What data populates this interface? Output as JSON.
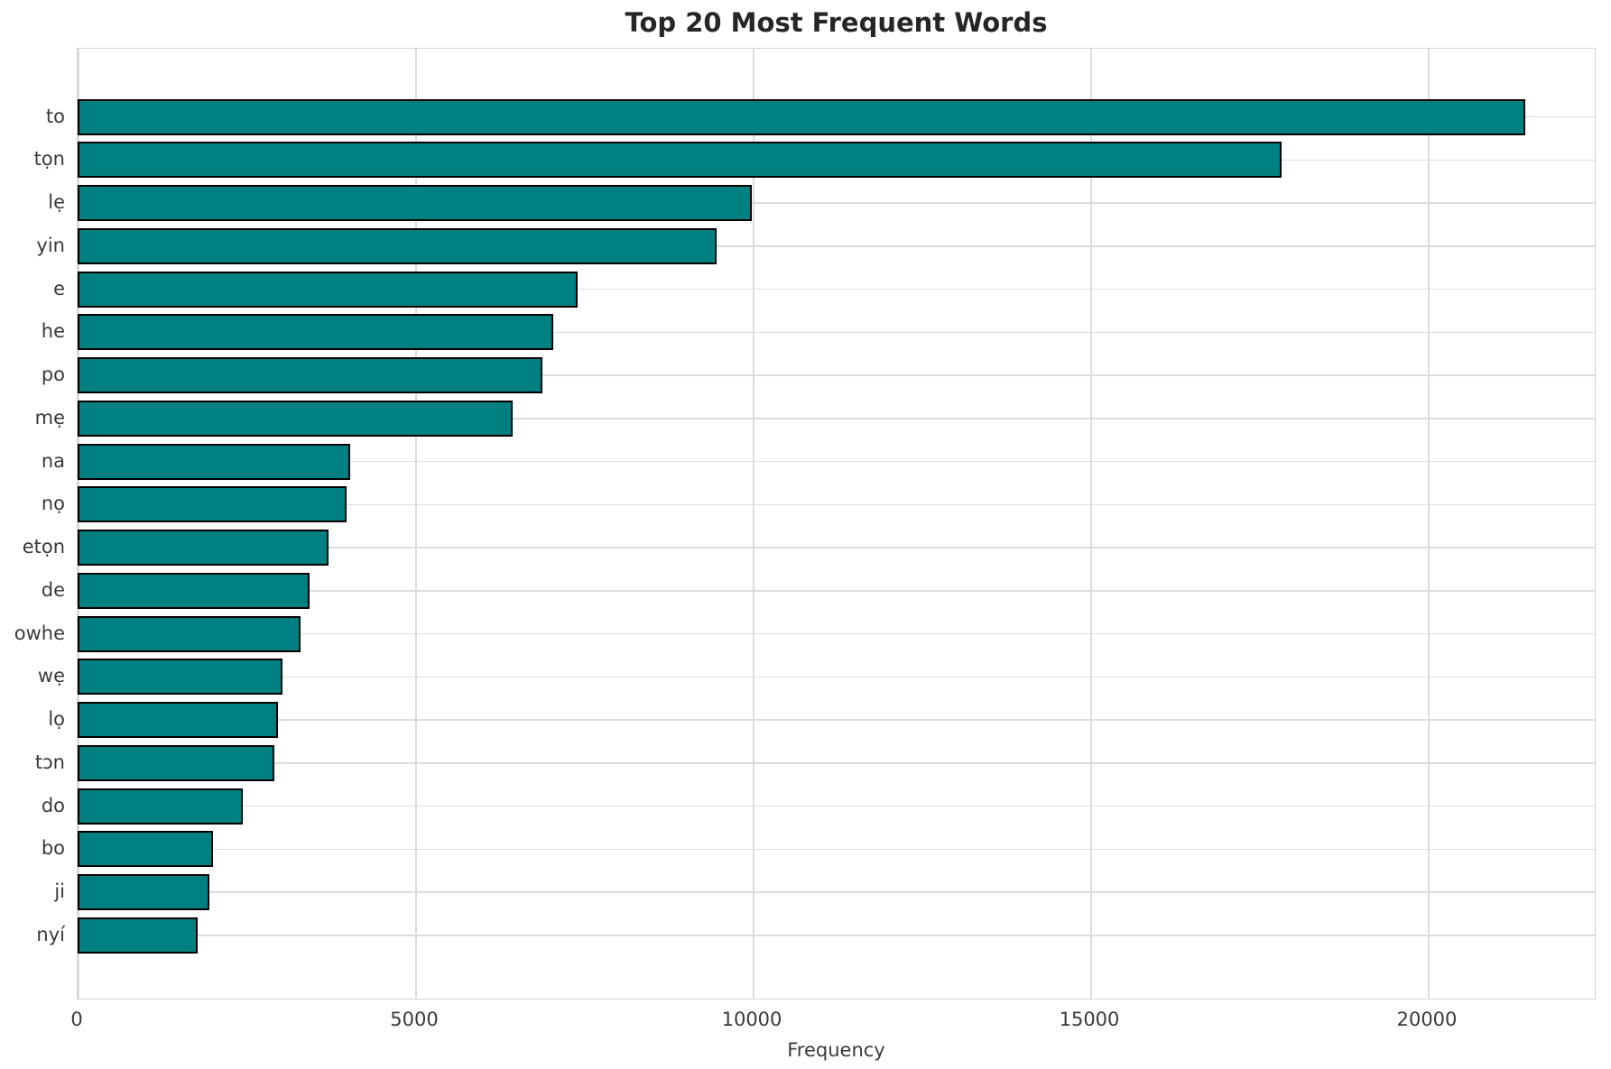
{
  "chart_data": {
    "type": "bar",
    "orientation": "horizontal",
    "title": "Top 20 Most Frequent Words",
    "xlabel": "Frequency",
    "ylabel": "",
    "categories": [
      "to",
      "tọn",
      "lẹ",
      "yin",
      "e",
      "he",
      "po",
      "mẹ",
      "na",
      "nọ",
      "etọn",
      "de",
      "owhe",
      "wẹ",
      "lọ",
      "tɔn",
      "do",
      "bo",
      "ji",
      "nyí"
    ],
    "values": [
      21450,
      17840,
      9990,
      9460,
      7410,
      7050,
      6880,
      6440,
      4040,
      3990,
      3720,
      3440,
      3300,
      3030,
      2970,
      2915,
      2450,
      2005,
      1950,
      1775
    ],
    "x_ticks": [
      0,
      5000,
      10000,
      15000,
      20000
    ],
    "x_tick_labels": [
      "0",
      "5000",
      "10000",
      "15000",
      "20000"
    ],
    "xlim": [
      0,
      22500
    ],
    "grid": true,
    "legend": false,
    "bar_color": "#008080",
    "bar_edge_color": "#000000",
    "grid_color": "#dcdcdc",
    "background_color": "#ffffff",
    "text_color": "#262626"
  }
}
